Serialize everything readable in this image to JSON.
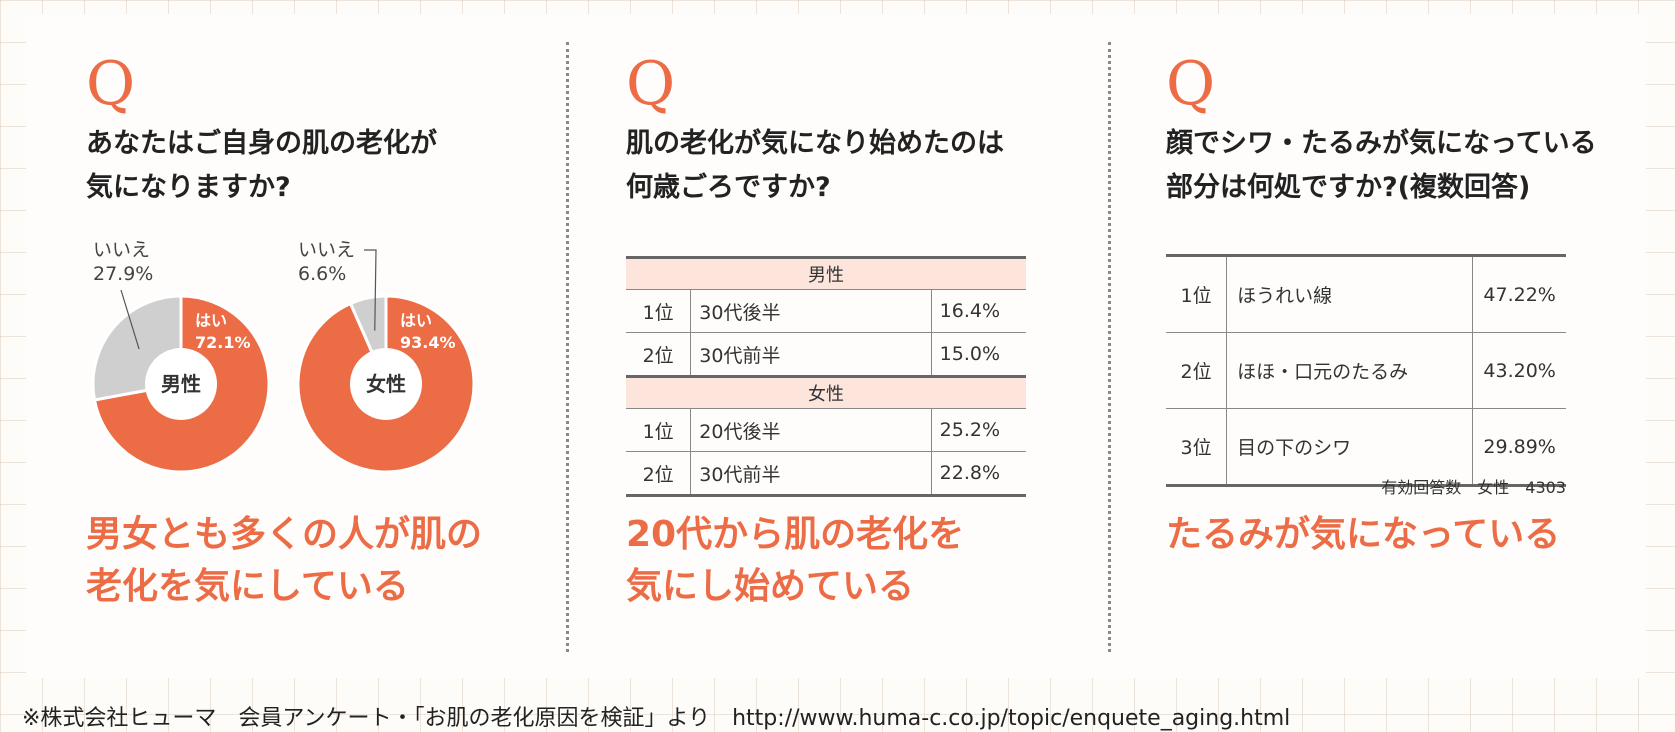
{
  "panels": [
    {
      "q_mark": "Q",
      "question": "あなたはご自身の肌の老化が\n気になりますか?",
      "conclusion": "男女とも多くの人が肌の\n老化を気にしている"
    },
    {
      "q_mark": "Q",
      "question": "肌の老化が気になり始めたのは\n何歳ごろですか?",
      "conclusion": "20代から肌の老化を\n気にし始めている"
    },
    {
      "q_mark": "Q",
      "question": "顔でシワ・たるみが気になっている\n部分は何処ですか?(複数回答)",
      "conclusion": "たるみが気になっている"
    }
  ],
  "colors": {
    "accent": "#ec6c46",
    "no_slice": "#cfcfcf",
    "section_bg": "#fde5dc"
  },
  "chart_data": [
    {
      "type": "pie",
      "center_label": "男性",
      "slices": [
        {
          "label": "はい",
          "value": 72.1,
          "value_label": "72.1%",
          "color": "#ec6c46"
        },
        {
          "label": "いいえ",
          "value": 27.9,
          "value_label": "27.9%",
          "color": "#cfcfcf"
        }
      ]
    },
    {
      "type": "pie",
      "center_label": "女性",
      "slices": [
        {
          "label": "はい",
          "value": 93.4,
          "value_label": "93.4%",
          "color": "#ec6c46"
        },
        {
          "label": "いいえ",
          "value": 6.6,
          "value_label": "6.6%",
          "color": "#cfcfcf"
        }
      ]
    },
    {
      "type": "table",
      "sections": [
        {
          "header": "男性",
          "rows": [
            {
              "rank": "1位",
              "age": "30代後半",
              "pct": "16.4%"
            },
            {
              "rank": "2位",
              "age": "30代前半",
              "pct": "15.0%"
            }
          ]
        },
        {
          "header": "女性",
          "rows": [
            {
              "rank": "1位",
              "age": "20代後半",
              "pct": "25.2%"
            },
            {
              "rank": "2位",
              "age": "30代前半",
              "pct": "22.8%"
            }
          ]
        }
      ]
    },
    {
      "type": "table",
      "rows": [
        {
          "rank": "1位",
          "part": "ほうれい線",
          "pct": "47.22%"
        },
        {
          "rank": "2位",
          "part": "ほほ・口元のたるみ",
          "pct": "43.20%"
        },
        {
          "rank": "3位",
          "part": "目の下のシワ",
          "pct": "29.89%"
        }
      ],
      "note": "有効回答数　女性　4303"
    }
  ],
  "source": "※株式会社ヒューマ　会員アンケート・「お肌の老化原因を検証」より　http://www.huma-c.co.jp/topic/enquete_aging.html"
}
